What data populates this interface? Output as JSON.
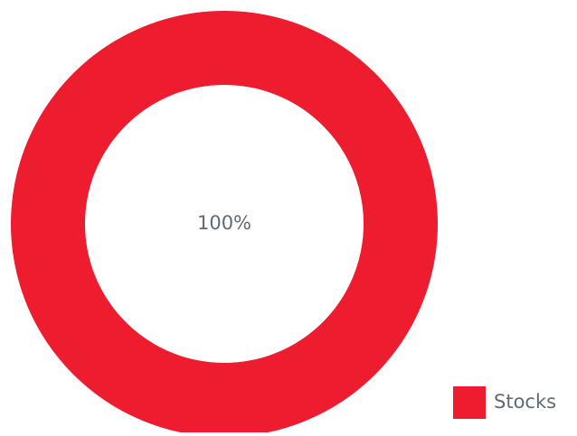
{
  "chart_data": {
    "type": "donut",
    "categories": [
      "Stocks"
    ],
    "values": [
      100
    ],
    "value_labels": [
      "100%"
    ],
    "colors": [
      "#ed1c2e"
    ],
    "legend": "bottom-right"
  }
}
